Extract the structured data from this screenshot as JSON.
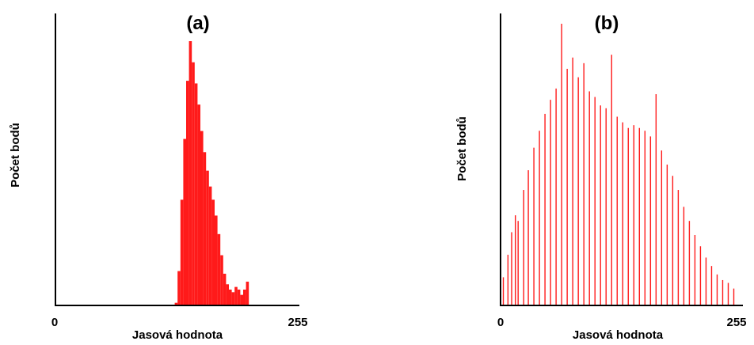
{
  "colors": {
    "bar": "#ff1a1a",
    "axis": "#000000",
    "background": "#ffffff"
  },
  "chart_data": [
    {
      "type": "bar",
      "title": "(a)",
      "xlabel": "Jasová hodnota",
      "ylabel": "Počet bodů",
      "xlim": [
        0,
        255
      ],
      "ylim": [
        0,
        100
      ],
      "x_ticks": [
        "0",
        "255"
      ],
      "grid": false,
      "legend": "none",
      "x": [
        127,
        130,
        133,
        136,
        139,
        142,
        145,
        148,
        151,
        154,
        157,
        160,
        163,
        166,
        169,
        172,
        175,
        178,
        181,
        184,
        187,
        190,
        193,
        196,
        199,
        202
      ],
      "values": [
        1,
        13,
        40,
        63,
        85,
        100,
        92,
        84,
        76,
        66,
        58,
        51,
        45,
        40,
        34,
        27,
        19,
        12,
        8,
        6,
        5,
        7,
        6,
        4,
        6,
        9
      ]
    },
    {
      "type": "bar",
      "title": "(b)",
      "xlabel": "Jasová hodnota",
      "ylabel": "Počet bodů",
      "xlim": [
        0,
        255
      ],
      "ylim": [
        0,
        100
      ],
      "x_ticks": [
        "0",
        "255"
      ],
      "grid": false,
      "legend": "none",
      "x": [
        3,
        8,
        12,
        16,
        19,
        25,
        30,
        36,
        42,
        48,
        54,
        60,
        66,
        72,
        78,
        84,
        90,
        96,
        102,
        108,
        114,
        120,
        126,
        132,
        138,
        144,
        150,
        156,
        162,
        168,
        174,
        180,
        186,
        192,
        198,
        204,
        210,
        216,
        222,
        228,
        234,
        240,
        246,
        252
      ],
      "values": [
        10,
        18,
        26,
        32,
        30,
        41,
        48,
        56,
        62,
        68,
        73,
        77,
        100,
        84,
        88,
        81,
        86,
        76,
        74,
        71,
        70,
        89,
        67,
        65,
        63,
        64,
        63,
        62,
        60,
        75,
        55,
        50,
        46,
        41,
        35,
        30,
        25,
        21,
        17,
        14,
        11,
        9,
        8,
        6
      ]
    }
  ]
}
